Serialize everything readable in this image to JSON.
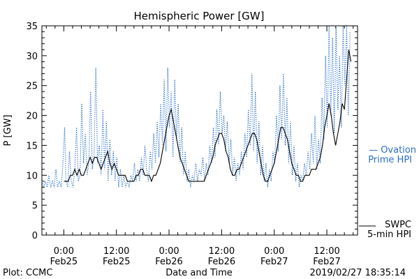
{
  "chart_data": {
    "type": "line",
    "title": "Hemispheric Power [GW]",
    "ylabel": "P [GW]",
    "xlabel": "Date and Time",
    "ylim": [
      0,
      35
    ],
    "y_ticks": [
      0,
      5,
      10,
      15,
      20,
      25,
      30,
      35
    ],
    "xlim_hours": [
      -5,
      67
    ],
    "x_ticks": [
      {
        "h": 0,
        "time": "0:00",
        "date": "Feb25"
      },
      {
        "h": 12,
        "time": "12:00",
        "date": "Feb25"
      },
      {
        "h": 24,
        "time": "0:00",
        "date": "Feb26"
      },
      {
        "h": 36,
        "time": "12:00",
        "date": "Feb26"
      },
      {
        "h": 48,
        "time": "0:00",
        "date": "Feb27"
      },
      {
        "h": 60,
        "time": "12:00",
        "date": "Feb27"
      }
    ],
    "series": [
      {
        "name": "Ovation Prime HPI",
        "legend_lines": [
          "— Ovation",
          "Prime HPI"
        ],
        "color": "#2a6fc9",
        "style": "dotted",
        "points": [
          [
            -5,
            9
          ],
          [
            -4.6,
            8
          ],
          [
            -4.2,
            9
          ],
          [
            -3.8,
            8
          ],
          [
            -3.4,
            10
          ],
          [
            -3,
            8
          ],
          [
            -2.6,
            9
          ],
          [
            -2.2,
            8
          ],
          [
            -1.8,
            11
          ],
          [
            -1.4,
            8
          ],
          [
            -1,
            9
          ],
          [
            -0.6,
            8
          ],
          [
            -0.2,
            12
          ],
          [
            0.2,
            18
          ],
          [
            0.5,
            9
          ],
          [
            0.9,
            8
          ],
          [
            1.3,
            14
          ],
          [
            1.7,
            9
          ],
          [
            2.1,
            8
          ],
          [
            2.5,
            11
          ],
          [
            2.9,
            18
          ],
          [
            3.3,
            9
          ],
          [
            3.7,
            10
          ],
          [
            4.1,
            22
          ],
          [
            4.5,
            12
          ],
          [
            4.9,
            17
          ],
          [
            5.3,
            10
          ],
          [
            5.7,
            12
          ],
          [
            6.1,
            24
          ],
          [
            6.5,
            11
          ],
          [
            6.9,
            13
          ],
          [
            7.3,
            28
          ],
          [
            7.7,
            12
          ],
          [
            8.1,
            15
          ],
          [
            8.5,
            10
          ],
          [
            8.9,
            21
          ],
          [
            9.3,
            11
          ],
          [
            9.7,
            19
          ],
          [
            10.1,
            9
          ],
          [
            10.5,
            16
          ],
          [
            10.9,
            10
          ],
          [
            11.3,
            14
          ],
          [
            11.7,
            9
          ],
          [
            12.1,
            13
          ],
          [
            12.5,
            8
          ],
          [
            12.9,
            11
          ],
          [
            13.3,
            8
          ],
          [
            13.7,
            10
          ],
          [
            14.1,
            8
          ],
          [
            14.5,
            9
          ],
          [
            14.9,
            8
          ],
          [
            15.3,
            10
          ],
          [
            15.7,
            9
          ],
          [
            16.1,
            12
          ],
          [
            16.5,
            9
          ],
          [
            16.9,
            11
          ],
          [
            17.3,
            9
          ],
          [
            17.7,
            13
          ],
          [
            18.1,
            10
          ],
          [
            18.5,
            15
          ],
          [
            18.9,
            11
          ],
          [
            19.3,
            9
          ],
          [
            19.7,
            14
          ],
          [
            20.1,
            11
          ],
          [
            20.5,
            17
          ],
          [
            20.9,
            12
          ],
          [
            21.3,
            19
          ],
          [
            21.7,
            13
          ],
          [
            22.1,
            22
          ],
          [
            22.5,
            15
          ],
          [
            22.9,
            26
          ],
          [
            23.3,
            14
          ],
          [
            23.7,
            28
          ],
          [
            24.1,
            18
          ],
          [
            24.5,
            24
          ],
          [
            24.9,
            13
          ],
          [
            25.3,
            26
          ],
          [
            25.7,
            16
          ],
          [
            26.1,
            22
          ],
          [
            26.5,
            12
          ],
          [
            26.9,
            18
          ],
          [
            27.3,
            10
          ],
          [
            27.7,
            14
          ],
          [
            28.1,
            9
          ],
          [
            28.5,
            11
          ],
          [
            28.9,
            8
          ],
          [
            29.3,
            10
          ],
          [
            29.7,
            9
          ],
          [
            30.1,
            12
          ],
          [
            30.5,
            9
          ],
          [
            30.9,
            11
          ],
          [
            31.3,
            10
          ],
          [
            31.7,
            13
          ],
          [
            32.1,
            9
          ],
          [
            32.5,
            12
          ],
          [
            32.9,
            10
          ],
          [
            33.3,
            15
          ],
          [
            33.7,
            12
          ],
          [
            34.1,
            18
          ],
          [
            34.5,
            13
          ],
          [
            34.9,
            21
          ],
          [
            35.3,
            15
          ],
          [
            35.7,
            24
          ],
          [
            36.1,
            17
          ],
          [
            36.5,
            20
          ],
          [
            36.9,
            14
          ],
          [
            37.3,
            19
          ],
          [
            37.7,
            12
          ],
          [
            38.1,
            16
          ],
          [
            38.5,
            10
          ],
          [
            38.9,
            13
          ],
          [
            39.3,
            9
          ],
          [
            39.7,
            12
          ],
          [
            40.1,
            10
          ],
          [
            40.5,
            14
          ],
          [
            40.9,
            11
          ],
          [
            41.3,
            17
          ],
          [
            41.7,
            13
          ],
          [
            42.1,
            21
          ],
          [
            42.5,
            15
          ],
          [
            42.9,
            27
          ],
          [
            43.3,
            14
          ],
          [
            43.7,
            24
          ],
          [
            44.1,
            12
          ],
          [
            44.5,
            19
          ],
          [
            44.9,
            10
          ],
          [
            45.3,
            15
          ],
          [
            45.7,
            9
          ],
          [
            46.1,
            12
          ],
          [
            46.5,
            8
          ],
          [
            46.9,
            11
          ],
          [
            47.3,
            9
          ],
          [
            47.7,
            14
          ],
          [
            48.1,
            12
          ],
          [
            48.5,
            20
          ],
          [
            48.9,
            14
          ],
          [
            49.3,
            25
          ],
          [
            49.7,
            16
          ],
          [
            50.1,
            27
          ],
          [
            50.5,
            15
          ],
          [
            50.9,
            23
          ],
          [
            51.3,
            12
          ],
          [
            51.7,
            19
          ],
          [
            52.1,
            10
          ],
          [
            52.5,
            15
          ],
          [
            52.9,
            9
          ],
          [
            53.3,
            12
          ],
          [
            53.7,
            8
          ],
          [
            54.1,
            10
          ],
          [
            54.5,
            9
          ],
          [
            54.9,
            12
          ],
          [
            55.3,
            10
          ],
          [
            55.7,
            14
          ],
          [
            56.1,
            11
          ],
          [
            56.5,
            17
          ],
          [
            56.9,
            12
          ],
          [
            57.3,
            20
          ],
          [
            57.7,
            11
          ],
          [
            58.1,
            16
          ],
          [
            58.5,
            12
          ],
          [
            58.9,
            23
          ],
          [
            59.3,
            16
          ],
          [
            59.7,
            30
          ],
          [
            60.1,
            18
          ],
          [
            60.5,
            35
          ],
          [
            60.9,
            20
          ],
          [
            61.3,
            33
          ],
          [
            61.7,
            17
          ],
          [
            62.1,
            35
          ],
          [
            62.5,
            21
          ],
          [
            62.9,
            30
          ],
          [
            63.3,
            18
          ],
          [
            63.7,
            35
          ],
          [
            64.1,
            25
          ],
          [
            64.5,
            35
          ],
          [
            64.9,
            20
          ],
          [
            65.3,
            34
          ]
        ]
      },
      {
        "name": "SWPC 5-min HPI",
        "legend_lines": [
          "SWPC",
          "5-min HPI"
        ],
        "color": "#000000",
        "style": "solid",
        "points": [
          [
            0,
            9
          ],
          [
            0.5,
            9
          ],
          [
            1,
            9
          ],
          [
            1.5,
            10
          ],
          [
            2,
            10
          ],
          [
            2.5,
            11
          ],
          [
            3,
            10
          ],
          [
            3.5,
            11
          ],
          [
            4,
            10
          ],
          [
            4.5,
            10
          ],
          [
            5,
            11
          ],
          [
            5.5,
            12
          ],
          [
            6,
            13
          ],
          [
            6.5,
            12
          ],
          [
            7,
            13
          ],
          [
            7.5,
            13
          ],
          [
            8,
            12
          ],
          [
            8.5,
            11
          ],
          [
            9,
            12
          ],
          [
            9.5,
            13
          ],
          [
            10,
            14
          ],
          [
            10.5,
            12
          ],
          [
            11,
            11
          ],
          [
            11.5,
            12
          ],
          [
            12,
            11
          ],
          [
            12.5,
            10
          ],
          [
            13,
            10
          ],
          [
            13.5,
            10
          ],
          [
            14,
            10
          ],
          [
            14.5,
            9
          ],
          [
            15,
            9
          ],
          [
            15.5,
            9
          ],
          [
            16,
            9
          ],
          [
            16.5,
            10
          ],
          [
            17,
            10
          ],
          [
            17.5,
            11
          ],
          [
            18,
            11
          ],
          [
            18.5,
            10
          ],
          [
            19,
            10
          ],
          [
            19.5,
            10
          ],
          [
            20,
            9
          ],
          [
            20.5,
            10
          ],
          [
            21,
            10
          ],
          [
            21.5,
            11
          ],
          [
            22,
            12
          ],
          [
            22.5,
            14
          ],
          [
            23,
            16
          ],
          [
            23.5,
            18
          ],
          [
            24,
            20
          ],
          [
            24.5,
            21
          ],
          [
            25,
            19
          ],
          [
            25.5,
            17
          ],
          [
            26,
            15
          ],
          [
            26.5,
            13
          ],
          [
            27,
            12
          ],
          [
            27.5,
            11
          ],
          [
            28,
            10
          ],
          [
            28.5,
            9
          ],
          [
            29,
            9
          ],
          [
            29.5,
            9
          ],
          [
            30,
            9
          ],
          [
            30.5,
            9
          ],
          [
            31,
            9
          ],
          [
            31.5,
            9
          ],
          [
            32,
            9
          ],
          [
            32.5,
            10
          ],
          [
            33,
            11
          ],
          [
            33.5,
            12
          ],
          [
            34,
            13
          ],
          [
            34.5,
            15
          ],
          [
            35,
            16
          ],
          [
            35.5,
            17
          ],
          [
            36,
            17
          ],
          [
            36.5,
            16
          ],
          [
            37,
            14
          ],
          [
            37.5,
            13
          ],
          [
            38,
            11
          ],
          [
            38.5,
            10
          ],
          [
            39,
            10
          ],
          [
            39.5,
            11
          ],
          [
            40,
            11
          ],
          [
            40.5,
            12
          ],
          [
            41,
            13
          ],
          [
            41.5,
            14
          ],
          [
            42,
            15
          ],
          [
            42.5,
            16
          ],
          [
            43,
            17
          ],
          [
            43.5,
            17
          ],
          [
            44,
            16
          ],
          [
            44.5,
            14
          ],
          [
            45,
            12
          ],
          [
            45.5,
            10
          ],
          [
            46,
            9
          ],
          [
            46.5,
            9
          ],
          [
            47,
            10
          ],
          [
            47.5,
            11
          ],
          [
            48,
            12
          ],
          [
            48.5,
            14
          ],
          [
            49,
            16
          ],
          [
            49.5,
            18
          ],
          [
            50,
            18
          ],
          [
            50.5,
            17
          ],
          [
            51,
            16
          ],
          [
            51.5,
            14
          ],
          [
            52,
            12
          ],
          [
            52.5,
            11
          ],
          [
            53,
            10
          ],
          [
            53.5,
            10
          ],
          [
            54,
            9
          ],
          [
            54.5,
            9
          ],
          [
            55,
            10
          ],
          [
            55.5,
            10
          ],
          [
            56,
            10
          ],
          [
            56.5,
            11
          ],
          [
            57,
            11
          ],
          [
            57.5,
            11
          ],
          [
            58,
            12
          ],
          [
            58.5,
            13
          ],
          [
            59,
            15
          ],
          [
            59.5,
            18
          ],
          [
            60,
            20
          ],
          [
            60.5,
            22
          ],
          [
            61,
            20
          ],
          [
            61.5,
            17
          ],
          [
            62,
            15
          ],
          [
            62.5,
            17
          ],
          [
            63,
            19
          ],
          [
            63.5,
            22
          ],
          [
            64,
            21
          ],
          [
            64.5,
            26
          ],
          [
            65,
            31
          ],
          [
            65.5,
            29
          ]
        ]
      }
    ]
  },
  "footer": {
    "left": "Plot: CCMC",
    "right": "2019/02/27 18:35:14"
  }
}
